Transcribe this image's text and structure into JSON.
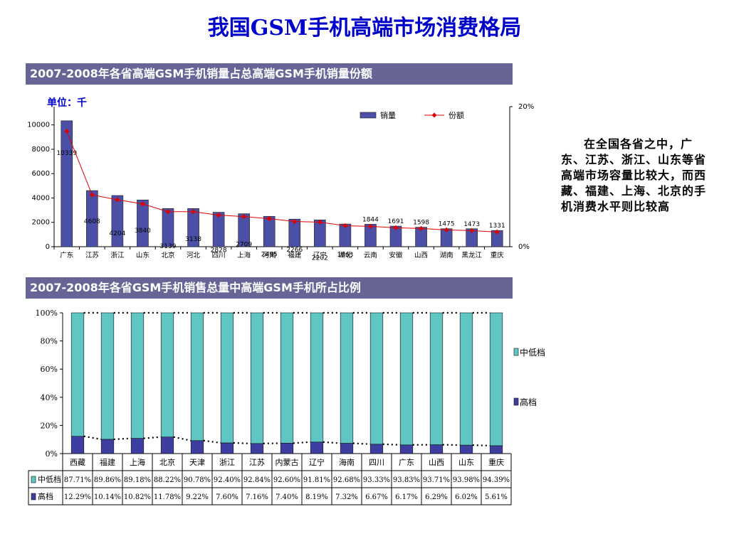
{
  "page_title": "我国GSM手机高端市场消费格局",
  "unit_label": "单位：千",
  "side_text": "在全国各省之中，广东、江苏、浙江、山东等省高端市场容量比较大，而西藏、福建、上海、北京的手机消费水平则比较高",
  "colors": {
    "banner": "#676596",
    "bar1": "#4b4fa6",
    "line1": "#e00000",
    "bar_teal": "#5fc6c4",
    "bar_navy": "#3e3ea0",
    "title": "#0000cc"
  },
  "chart_data": [
    {
      "type": "bar",
      "title": "2007-2008年各省高端GSM手机销量占总高端GSM手机销量份额",
      "categories": [
        "广东",
        "江苏",
        "浙江",
        "山东",
        "北京",
        "河北",
        "四川",
        "上海",
        "河南",
        "福建",
        "辽宁",
        "湖北",
        "云南",
        "安徽",
        "山西",
        "湖南",
        "黑龙江",
        "重庆"
      ],
      "series": [
        {
          "name": "销量",
          "type": "bar",
          "axis": "left",
          "values": [
            10339,
            4608,
            4204,
            3840,
            3139,
            3138,
            2828,
            2709,
            2495,
            2266,
            2202,
            1863,
            1844,
            1691,
            1598,
            1475,
            1473,
            1331
          ],
          "labels": [
            "10339",
            "4608",
            "4204",
            "3840",
            "3139",
            "3138",
            "2828",
            "2709",
            "2495",
            "2266",
            "2202",
            "1863",
            "1844",
            "1691",
            "1598",
            "1475",
            "1473",
            "1331"
          ]
        },
        {
          "name": "份额",
          "type": "line",
          "axis": "right",
          "values": [
            16.5,
            7.4,
            6.7,
            6.1,
            5.0,
            5.0,
            4.5,
            4.3,
            4.0,
            3.6,
            3.5,
            3.0,
            2.9,
            2.7,
            2.6,
            2.4,
            2.3,
            2.1
          ]
        }
      ],
      "y_left": {
        "ylim": [
          0,
          11500
        ],
        "ticks": [
          0,
          2000,
          4000,
          6000,
          8000,
          10000
        ],
        "tick_labels": [
          "0",
          "2000",
          "4000",
          "6000",
          "8000",
          "10000"
        ]
      },
      "y_right": {
        "ylim": [
          0,
          20
        ],
        "ticks": [
          0,
          20
        ],
        "tick_labels": [
          "0%",
          "20%"
        ]
      },
      "legend_position": "top-right",
      "grid": false
    },
    {
      "type": "bar",
      "stacked": true,
      "title": "2007-2008年各省GSM手机销售总量中高端GSM手机所占比例",
      "categories": [
        "西藏",
        "福建",
        "上海",
        "北京",
        "天津",
        "浙江",
        "江苏",
        "内蒙古",
        "辽宁",
        "海南",
        "四川",
        "广东",
        "山西",
        "山东",
        "重庆"
      ],
      "series": [
        {
          "name": "中低档",
          "values": [
            87.71,
            89.86,
            89.18,
            88.22,
            90.78,
            92.4,
            92.84,
            92.6,
            91.81,
            92.68,
            93.33,
            93.83,
            93.71,
            93.98,
            94.39
          ],
          "labels": [
            "87.71%",
            "89.86%",
            "89.18%",
            "88.22%",
            "90.78%",
            "92.40%",
            "92.84%",
            "92.60%",
            "91.81%",
            "92.68%",
            "93.33%",
            "93.83%",
            "93.71%",
            "93.98%",
            "94.39%"
          ]
        },
        {
          "name": "高档",
          "values": [
            12.29,
            10.14,
            10.82,
            11.78,
            9.22,
            7.6,
            7.16,
            7.4,
            8.19,
            7.32,
            6.67,
            6.17,
            6.29,
            6.02,
            5.61
          ],
          "labels": [
            "12.29%",
            "10.14%",
            "10.82%",
            "11.78%",
            "9.22%",
            "7.60%",
            "7.16%",
            "7.40%",
            "8.19%",
            "7.32%",
            "6.67%",
            "6.17%",
            "6.29%",
            "6.02%",
            "5.61%"
          ]
        }
      ],
      "ylim": [
        0,
        100
      ],
      "ticks": [
        0,
        20,
        40,
        60,
        80,
        100
      ],
      "tick_labels": [
        "0%",
        "20%",
        "40%",
        "60%",
        "80%",
        "100%"
      ],
      "legend_position": "right",
      "grid": false
    }
  ]
}
